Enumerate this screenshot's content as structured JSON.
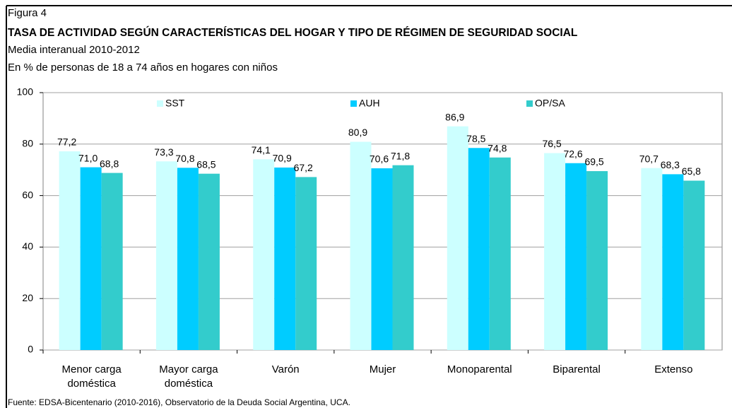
{
  "chart_data": {
    "type": "bar",
    "label": "Figura 4",
    "title": "TASA DE ACTIVIDAD SEGÚN CARACTERÍSTICAS DEL HOGAR Y TIPO DE RÉGIMEN DE SEGURIDAD SOCIAL",
    "subtitle": "Media interanual 2010-2012",
    "unit_note": "En % de personas de 18 a 74 años en hogares con niños",
    "source": "Fuente: EDSA-Bicentenario (2010-2016), Observatorio de la Deuda Social Argentina, UCA.",
    "categories": [
      "Menor carga doméstica",
      "Mayor carga doméstica",
      "Varón",
      "Mujer",
      "Monoparental",
      "Biparental",
      "Extenso"
    ],
    "series": [
      {
        "name": "SST",
        "color": "#ccffff",
        "values": [
          77.2,
          73.3,
          74.1,
          80.9,
          86.9,
          76.5,
          70.7
        ],
        "value_labels": [
          "77,2",
          "73,3",
          "74,1",
          "80,9",
          "86,9",
          "76,5",
          "70,7"
        ]
      },
      {
        "name": "AUH",
        "color": "#00ccff",
        "values": [
          71.0,
          70.8,
          70.9,
          70.6,
          78.5,
          72.6,
          68.3
        ],
        "value_labels": [
          "71,0",
          "70,8",
          "70,9",
          "70,6",
          "78,5",
          "72,6",
          "68,3"
        ]
      },
      {
        "name": "OP/SA",
        "color": "#33cccc",
        "values": [
          68.8,
          68.5,
          67.2,
          71.8,
          74.8,
          69.5,
          65.8
        ],
        "value_labels": [
          "68,8",
          "68,5",
          "67,2",
          "71,8",
          "74,8",
          "69,5",
          "65,8"
        ]
      }
    ],
    "ylim": [
      0,
      100
    ],
    "yticks": [
      0,
      20,
      40,
      60,
      80,
      100
    ],
    "grid": true,
    "legend": "top"
  }
}
